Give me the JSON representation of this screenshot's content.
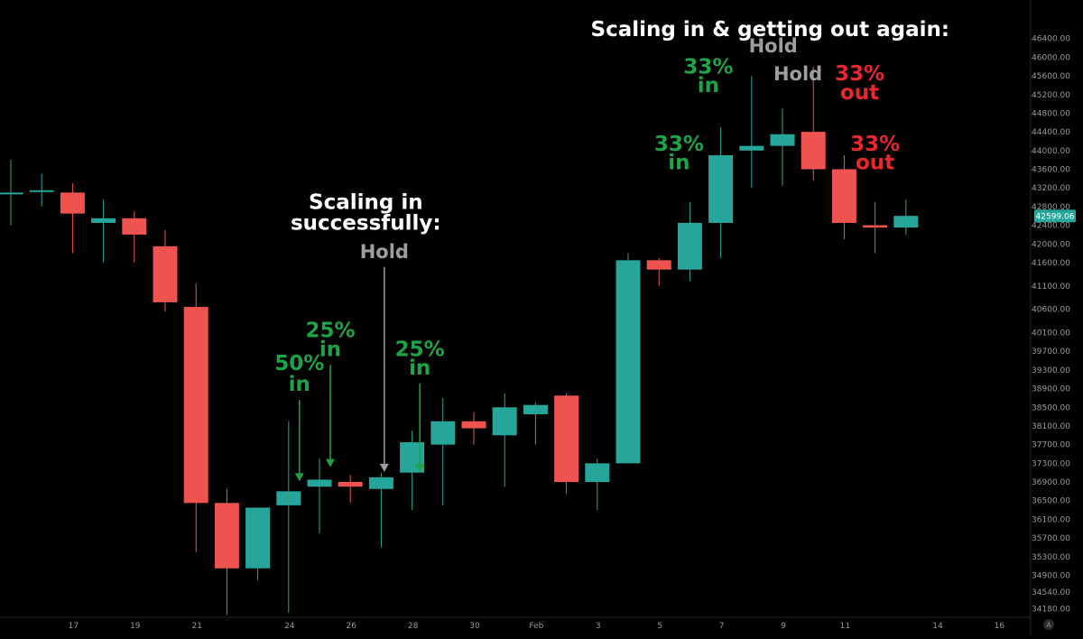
{
  "chart_data": {
    "type": "candlestick",
    "colors": {
      "up": "#26a69a",
      "down": "#ef5350",
      "background": "#000000",
      "in": "#1fa347",
      "out": "#e8282c",
      "hold": "#9e9e9e",
      "title": "#ffffff"
    },
    "ylim": [
      34000,
      46800
    ],
    "y_ticks": [
      "46400.00",
      "46000.00",
      "45600.00",
      "45200.00",
      "44800.00",
      "44400.00",
      "44000.00",
      "43600.00",
      "43200.00",
      "42800.00",
      "42400.00",
      "42000.00",
      "41600.00",
      "41100.00",
      "40600.00",
      "40100.00",
      "39700.00",
      "39300.00",
      "38900.00",
      "38500.00",
      "38100.00",
      "37700.00",
      "37300.00",
      "36900.00",
      "36500.00",
      "36100.00",
      "35700.00",
      "35300.00",
      "34900.00",
      "34540.00",
      "34180.00"
    ],
    "x_ticks": [
      "17",
      "19",
      "21",
      "24",
      "26",
      "28",
      "30",
      "Feb",
      "3",
      "5",
      "7",
      "9",
      "11",
      "14",
      "16"
    ],
    "last_price": "42599.06",
    "candles": [
      {
        "o": 43100,
        "h": 43800,
        "l": 42400,
        "c": 43100
      },
      {
        "o": 43150,
        "h": 43500,
        "l": 42800,
        "c": 43150
      },
      {
        "o": 43100,
        "h": 43300,
        "l": 41800,
        "c": 42650
      },
      {
        "o": 42450,
        "h": 42950,
        "l": 41600,
        "c": 42550
      },
      {
        "o": 42550,
        "h": 42700,
        "l": 41600,
        "c": 42200
      },
      {
        "o": 41950,
        "h": 42300,
        "l": 40550,
        "c": 40750
      },
      {
        "o": 40650,
        "h": 41150,
        "l": 35400,
        "c": 36450
      },
      {
        "o": 36450,
        "h": 36750,
        "l": 34050,
        "c": 35050
      },
      {
        "o": 35050,
        "h": 36350,
        "l": 34800,
        "c": 36350
      },
      {
        "o": 36400,
        "h": 38200,
        "l": 34100,
        "c": 36700
      },
      {
        "o": 36800,
        "h": 37400,
        "l": 35800,
        "c": 36950
      },
      {
        "o": 36900,
        "h": 37050,
        "l": 36450,
        "c": 36800
      },
      {
        "o": 36750,
        "h": 37100,
        "l": 35500,
        "c": 37000
      },
      {
        "o": 37100,
        "h": 38000,
        "l": 36300,
        "c": 37750
      },
      {
        "o": 37700,
        "h": 38700,
        "l": 36400,
        "c": 38200
      },
      {
        "o": 38200,
        "h": 38400,
        "l": 37700,
        "c": 38050
      },
      {
        "o": 37900,
        "h": 38800,
        "l": 36800,
        "c": 38500
      },
      {
        "o": 38350,
        "h": 38600,
        "l": 37700,
        "c": 38550
      },
      {
        "o": 38750,
        "h": 38800,
        "l": 36650,
        "c": 36900
      },
      {
        "o": 36900,
        "h": 37400,
        "l": 36300,
        "c": 37300
      },
      {
        "o": 37300,
        "h": 41800,
        "l": 37300,
        "c": 41650
      },
      {
        "o": 41650,
        "h": 41700,
        "l": 41100,
        "c": 41450
      },
      {
        "o": 41450,
        "h": 42900,
        "l": 41200,
        "c": 42450
      },
      {
        "o": 42450,
        "h": 44500,
        "l": 41700,
        "c": 43900
      },
      {
        "o": 44000,
        "h": 45600,
        "l": 43200,
        "c": 44100
      },
      {
        "o": 44100,
        "h": 44900,
        "l": 43250,
        "c": 44350
      },
      {
        "o": 44400,
        "h": 45800,
        "l": 43350,
        "c": 43600
      },
      {
        "o": 43600,
        "h": 43900,
        "l": 42100,
        "c": 42450
      },
      {
        "o": 42400,
        "h": 42900,
        "l": 41800,
        "c": 42350
      },
      {
        "o": 42350,
        "h": 42950,
        "l": 42200,
        "c": 42600
      }
    ],
    "annotations": [
      {
        "text": "Scaling in & getting out again:",
        "kind": "title",
        "candle": 24.6,
        "price": 46450
      },
      {
        "text": "Scaling in",
        "kind": "title",
        "candle": 11.5,
        "price": 42750
      },
      {
        "text": "successfully:",
        "kind": "title",
        "candle": 11.5,
        "price": 42300
      },
      {
        "text": "Hold",
        "kind": "hold",
        "candle": 12.1,
        "price": 41700,
        "arrow_to": 37000
      },
      {
        "text": "50%",
        "kind": "in",
        "candle": 9.35,
        "price": 39300
      },
      {
        "text": "in",
        "kind": "in",
        "candle": 9.35,
        "price": 38850,
        "arrow_to": 36800
      },
      {
        "text": "25%",
        "kind": "in",
        "candle": 10.35,
        "price": 40000
      },
      {
        "text": "in",
        "kind": "in",
        "candle": 10.35,
        "price": 39600,
        "arrow_to": 37100
      },
      {
        "text": "25%",
        "kind": "in",
        "candle": 13.25,
        "price": 39600
      },
      {
        "text": "in",
        "kind": "in",
        "candle": 13.25,
        "price": 39200,
        "arrow_to": 37000
      },
      {
        "text": "33%",
        "kind": "in",
        "candle": 22.6,
        "price": 45650
      },
      {
        "text": "in",
        "kind": "in",
        "candle": 22.6,
        "price": 45250
      },
      {
        "text": "33%",
        "kind": "in",
        "candle": 21.65,
        "price": 44000
      },
      {
        "text": "in",
        "kind": "in",
        "candle": 21.65,
        "price": 43600
      },
      {
        "text": "Hold",
        "kind": "hold",
        "candle": 24.7,
        "price": 46100
      },
      {
        "text": "Hold",
        "kind": "hold",
        "candle": 25.5,
        "price": 45500
      },
      {
        "text": "33%",
        "kind": "out",
        "candle": 27.5,
        "price": 45500
      },
      {
        "text": "out",
        "kind": "out",
        "candle": 27.5,
        "price": 45100
      },
      {
        "text": "33%",
        "kind": "out",
        "candle": 28.0,
        "price": 44000
      },
      {
        "text": "out",
        "kind": "out",
        "candle": 28.0,
        "price": 43600
      }
    ]
  },
  "watermark": "A"
}
